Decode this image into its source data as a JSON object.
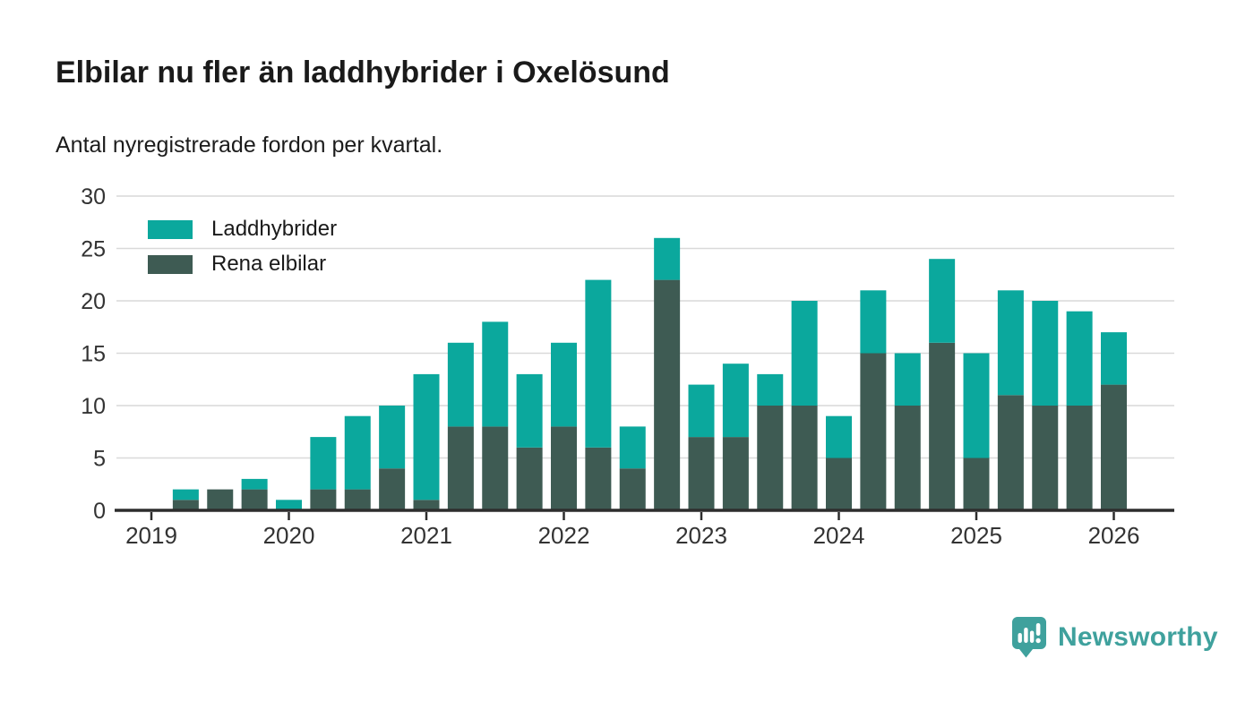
{
  "header": {
    "title": "Elbilar nu fler än laddhybrider i Oxelösund",
    "subtitle": "Antal nyregistrerade fordon per kvartal."
  },
  "legend": {
    "items": [
      {
        "label": "Laddhybrider",
        "color": "#0ba89d"
      },
      {
        "label": "Rena elbilar",
        "color": "#3e5b53"
      }
    ]
  },
  "footer": {
    "brand": "Newsworthy",
    "logo_color": "#3fa19d",
    "logo_icon": "bar-chart-speech-bubble-icon"
  },
  "colors": {
    "grid": "#d9d9d9",
    "axis": "#2d2d2d",
    "tick_text": "#333333"
  },
  "chart_data": {
    "type": "bar",
    "stacked": true,
    "title": "Elbilar nu fler än laddhybrider i Oxelösund",
    "subtitle": "Antal nyregistrerade fordon per kvartal.",
    "xlabel": "",
    "ylabel": "",
    "ylim": [
      0,
      30
    ],
    "grid": true,
    "legend_position": "top-left",
    "categories": [
      "2019 Q1",
      "2019 Q2",
      "2019 Q3",
      "2019 Q4",
      "2020 Q1",
      "2020 Q2",
      "2020 Q3",
      "2020 Q4",
      "2021 Q1",
      "2021 Q2",
      "2021 Q3",
      "2021 Q4",
      "2022 Q1",
      "2022 Q2",
      "2022 Q3",
      "2022 Q4",
      "2023 Q1",
      "2023 Q2",
      "2023 Q3",
      "2023 Q4",
      "2024 Q1",
      "2024 Q2",
      "2024 Q3",
      "2024 Q4",
      "2025 Q1",
      "2025 Q2",
      "2025 Q3",
      "2025 Q4",
      "2026 Q1"
    ],
    "series": [
      {
        "name": "Rena elbilar",
        "color": "#3e5b53",
        "values": [
          0,
          1,
          2,
          2,
          0,
          2,
          2,
          4,
          1,
          8,
          8,
          6,
          8,
          6,
          4,
          22,
          7,
          7,
          10,
          10,
          5,
          15,
          10,
          16,
          5,
          11,
          10,
          10,
          12
        ]
      },
      {
        "name": "Laddhybrider",
        "color": "#0ba89d",
        "values": [
          0,
          1,
          0,
          1,
          1,
          5,
          7,
          6,
          12,
          8,
          10,
          7,
          8,
          16,
          4,
          4,
          5,
          7,
          3,
          10,
          4,
          6,
          5,
          8,
          10,
          10,
          10,
          9,
          5
        ]
      }
    ],
    "totals": [
      0,
      2,
      2,
      3,
      1,
      7,
      9,
      10,
      13,
      16,
      18,
      13,
      16,
      22,
      8,
      26,
      12,
      14,
      13,
      20,
      9,
      21,
      15,
      24,
      15,
      21,
      20,
      19,
      17
    ],
    "x_ticks": [
      {
        "index": 0,
        "label": "2019"
      },
      {
        "index": 4,
        "label": "2020"
      },
      {
        "index": 8,
        "label": "2021"
      },
      {
        "index": 12,
        "label": "2022"
      },
      {
        "index": 16,
        "label": "2023"
      },
      {
        "index": 20,
        "label": "2024"
      },
      {
        "index": 24,
        "label": "2025"
      },
      {
        "index": 28,
        "label": "2026"
      }
    ],
    "y_ticks": [
      0,
      5,
      10,
      15,
      20,
      25,
      30
    ]
  }
}
